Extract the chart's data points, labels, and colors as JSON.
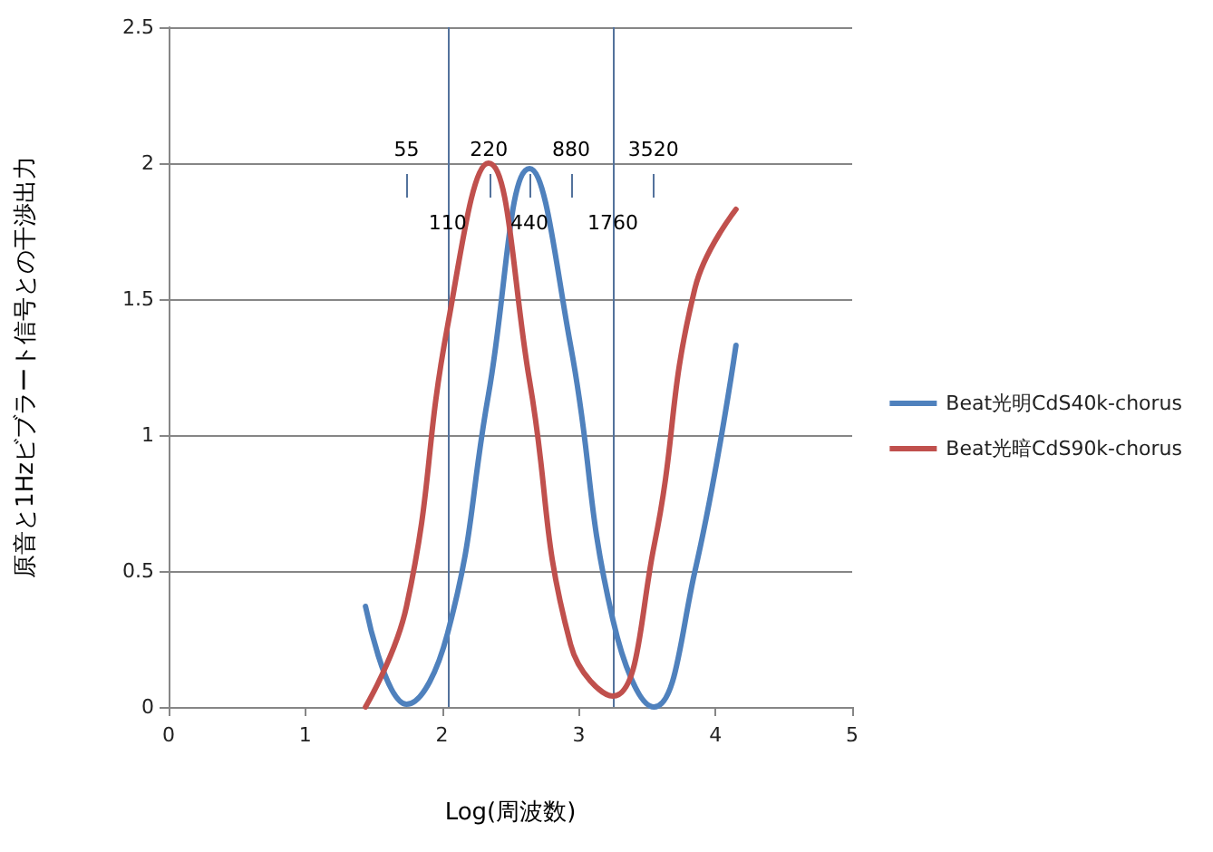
{
  "chart_data": {
    "type": "line",
    "xlabel": "Log(周波数)",
    "ylabel": "原音と1Hzビブラート信号との干渉出力",
    "x": [
      1.44,
      1.74,
      2.04,
      2.34,
      2.64,
      2.94,
      3.25,
      3.55,
      3.85,
      4.15
    ],
    "series": [
      {
        "name": "Beat光明CdS40k-chorus",
        "color": "#4f81bd",
        "values": [
          0.37,
          0.01,
          0.27,
          1.15,
          1.98,
          1.33,
          0.32,
          0.0,
          0.5,
          1.33
        ]
      },
      {
        "name": "Beat光暗CdS90k-chorus",
        "color": "#c0504d",
        "values": [
          0.0,
          0.37,
          1.4,
          2.0,
          1.2,
          0.23,
          0.04,
          0.59,
          1.54,
          1.83
        ]
      }
    ],
    "xlim": [
      0,
      5
    ],
    "xticks": [
      0,
      1,
      2,
      3,
      4,
      5
    ],
    "ylim": [
      0,
      2.5
    ],
    "yticks": [
      0,
      0.5,
      1,
      1.5,
      2,
      2.5
    ],
    "x2lim": [
      1,
      100000
    ],
    "x2ticks": [
      55,
      220,
      880,
      3520
    ],
    "log": "x2",
    "annotations": [
      {
        "text": "110",
        "x": 2.04,
        "y": 1.98
      },
      {
        "text": "440",
        "x": 2.64,
        "y": 1.98
      },
      {
        "text": "1760",
        "x": 3.25,
        "y": 1.98
      }
    ],
    "grid": "y",
    "legend": "right",
    "marker": "none",
    "ref_lines": [
      {
        "axis": "x",
        "value": 2.04,
        "color": "#53729c"
      },
      {
        "axis": "x",
        "value": 3.25,
        "color": "#53729c"
      }
    ]
  }
}
